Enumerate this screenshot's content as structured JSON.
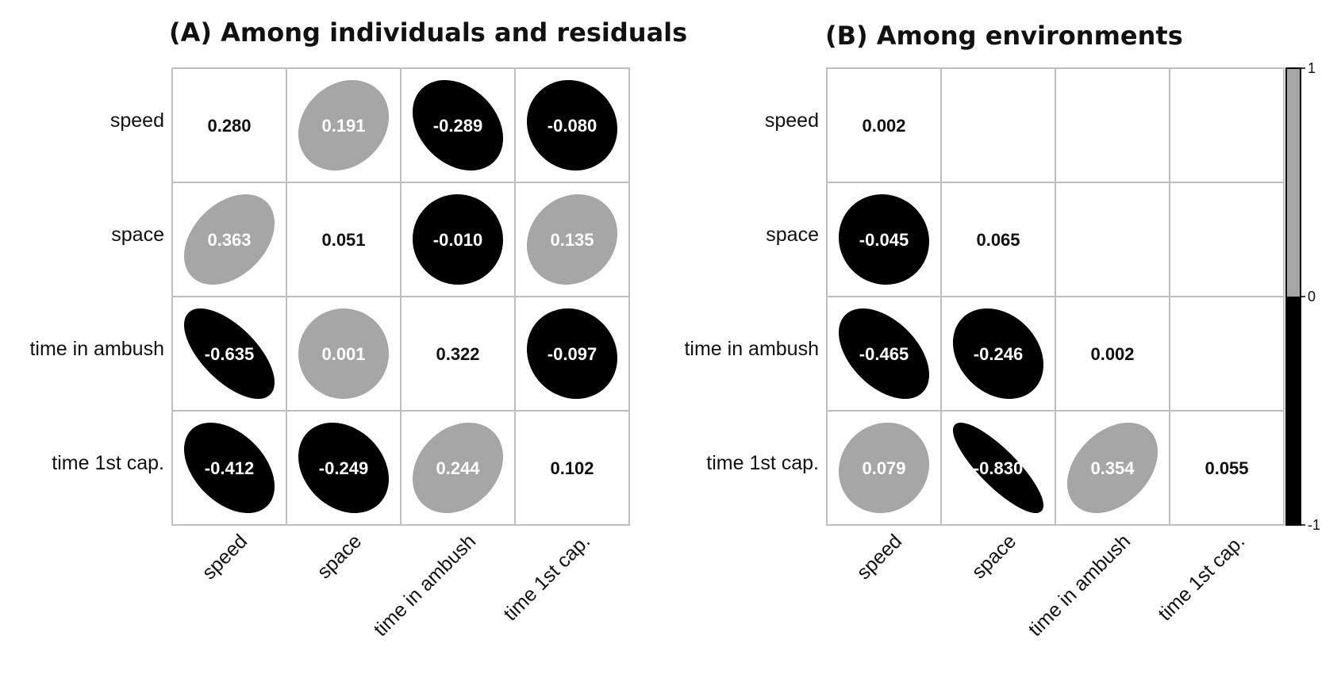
{
  "chart_data": [
    {
      "type": "heatmap",
      "title": "(A) Among individuals and residuals",
      "rows": [
        "speed",
        "space",
        "time in ambush",
        "time 1st cap."
      ],
      "columns": [
        "speed",
        "space",
        "time in ambush",
        "time 1st cap."
      ],
      "values": [
        [
          0.28,
          0.191,
          -0.289,
          -0.08
        ],
        [
          0.363,
          0.051,
          -0.01,
          0.135
        ],
        [
          -0.635,
          0.001,
          0.322,
          -0.097
        ],
        [
          -0.412,
          -0.249,
          0.244,
          0.102
        ]
      ],
      "labels": [
        [
          "0.280",
          "0.191",
          "-0.289",
          "-0.080"
        ],
        [
          "0.363",
          "0.051",
          "-0.010",
          "0.135"
        ],
        [
          "-0.635",
          "0.001",
          "0.322",
          "-0.097"
        ],
        [
          "-0.412",
          "-0.249",
          "0.244",
          "0.102"
        ]
      ]
    },
    {
      "type": "heatmap",
      "title": "(B) Among environments",
      "rows": [
        "speed",
        "space",
        "time in ambush",
        "time 1st cap."
      ],
      "columns": [
        "speed",
        "space",
        "time in ambush",
        "time 1st cap."
      ],
      "values": [
        [
          0.002,
          null,
          null,
          null
        ],
        [
          -0.045,
          0.065,
          null,
          null
        ],
        [
          -0.465,
          -0.246,
          0.002,
          null
        ],
        [
          0.079,
          -0.83,
          0.354,
          0.055
        ]
      ],
      "labels": [
        [
          "0.002",
          "",
          "",
          ""
        ],
        [
          "-0.045",
          "0.065",
          "",
          ""
        ],
        [
          "-0.465",
          "-0.246",
          "0.002",
          ""
        ],
        [
          "0.079",
          "-0.830",
          "0.354",
          "0.055"
        ]
      ]
    }
  ],
  "colorbar": {
    "ticks": [
      "1",
      "0",
      "-1"
    ],
    "range": [
      -1,
      1
    ],
    "colors": {
      "positive": "#a6a6a6",
      "negative": "#000000"
    }
  },
  "colors": {
    "positive": "#a6a6a6",
    "negative": "#000000",
    "grid": "#c0c0c0",
    "diag_text": "#111111",
    "ellipse_text": "#ffffff"
  }
}
